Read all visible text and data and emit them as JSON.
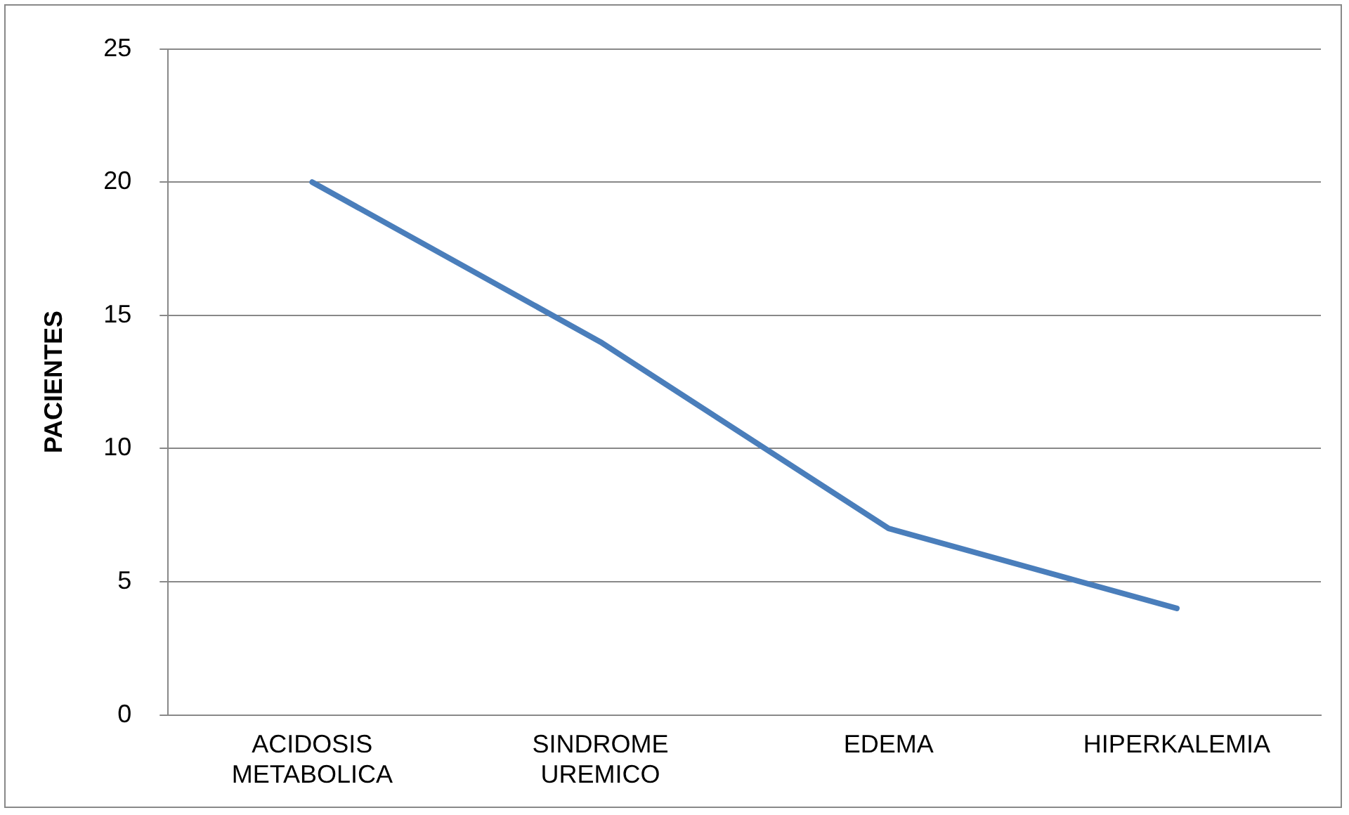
{
  "chart_data": {
    "type": "line",
    "ylabel": "PACIENTES",
    "categories": [
      "ACIDOSIS METABOLICA",
      "SINDROME UREMICO",
      "EDEMA",
      "HIPERKALEMIA"
    ],
    "series": [
      {
        "color": "#4a7ebb",
        "values": [
          20,
          14,
          7,
          4
        ]
      }
    ],
    "ylim": [
      0,
      25
    ],
    "yticks": [
      0,
      5,
      10,
      15,
      20,
      25
    ],
    "grid": "y",
    "legend": false,
    "marker": "none",
    "line_style": "solid"
  }
}
